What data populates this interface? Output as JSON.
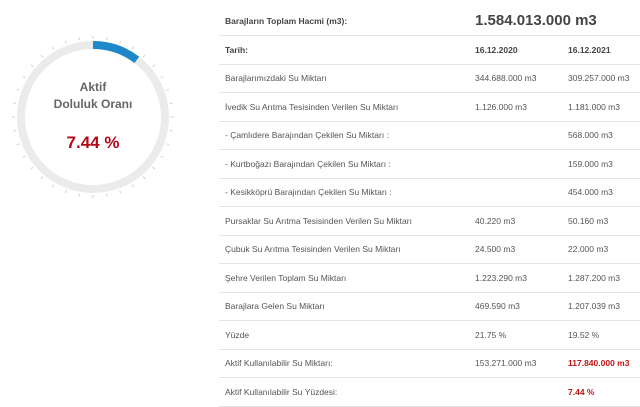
{
  "gauge": {
    "title_line1": "Aktif",
    "title_line2": "Doluluk Oranı",
    "value_text": "7.44 %",
    "fraction": 0.0744,
    "track_color": "#ebebeb",
    "fill_color": "#1e88c8",
    "value_color": "#b4091b"
  },
  "table": {
    "total_label": "Barajların Toplam Hacmi (m3):",
    "total_value": "1.584.013.000 m3",
    "date_label": "Tarih:",
    "date_1": "16.12.2020",
    "date_2": "16.12.2021",
    "rows": [
      {
        "label": "Barajlarımızdaki Su Miktarı",
        "v1": "344.688.000 m3",
        "v2": "309.257.000 m3"
      },
      {
        "label": "İvedik Su Arıtma Tesisinden Verilen Su Miktarı",
        "v1": "1.126.000 m3",
        "v2": "1.181.000 m3"
      },
      {
        "label": "- Çamlıdere Barajından Çekilen Su Miktarı :",
        "v1": "",
        "v2": "568.000 m3"
      },
      {
        "label": "- Kurtboğazı Barajından Çekilen Su Miktarı :",
        "v1": "",
        "v2": "159.000 m3"
      },
      {
        "label": "- Kesikköprü Barajından Çekilen Su Miktarı :",
        "v1": "",
        "v2": "454.000 m3"
      },
      {
        "label": "Pursaklar Su Arıtma Tesisinden Verilen Su Miktarı",
        "v1": "40.220 m3",
        "v2": "50.160 m3"
      },
      {
        "label": "Çubuk Su Arıtma Tesisinden Verilen Su Miktarı",
        "v1": "24.500 m3",
        "v2": "22.000 m3"
      },
      {
        "label": "Şehre Verilen Toplam Su Miktarı",
        "v1": "1.223.290 m3",
        "v2": "1.287.200 m3"
      },
      {
        "label": "Barajlara Gelen Su Miktarı",
        "v1": "469.590 m3",
        "v2": "1.207.039 m3"
      },
      {
        "label": "Yüzde",
        "v1": "21.75 %",
        "v2": "19.52 %"
      },
      {
        "label": "Aktif Kullanılabilir Su Miktarı:",
        "v1": "153.271.000 m3",
        "v2": "117.840.000 m3"
      },
      {
        "label": "Aktif Kullanılabilir Su Yüzdesi:",
        "v1": "",
        "v2": "7.44 %"
      }
    ]
  }
}
